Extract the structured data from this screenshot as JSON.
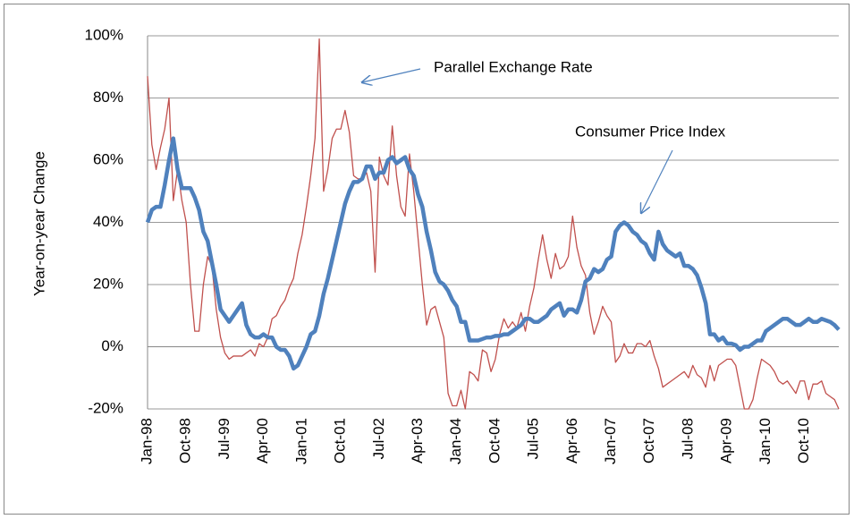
{
  "chart_data": {
    "type": "line",
    "ylabel": "Year-on-year Change",
    "annotations": [
      "Parallel Exchange Rate",
      "Consumer Price Index"
    ],
    "categories": [
      "Jan-98",
      null,
      null,
      null,
      null,
      null,
      null,
      null,
      null,
      "Oct-98",
      null,
      null,
      null,
      null,
      null,
      null,
      null,
      null,
      "Jul-99",
      null,
      null,
      null,
      null,
      null,
      null,
      null,
      null,
      "Apr-00",
      null,
      null,
      null,
      null,
      null,
      null,
      null,
      null,
      "Jan-01",
      null,
      null,
      null,
      null,
      null,
      null,
      null,
      null,
      "Oct-01",
      null,
      null,
      null,
      null,
      null,
      null,
      null,
      null,
      "Jul-02",
      null,
      null,
      null,
      null,
      null,
      null,
      null,
      null,
      "Apr-03",
      null,
      null,
      null,
      null,
      null,
      null,
      null,
      null,
      "Jan-04",
      null,
      null,
      null,
      null,
      null,
      null,
      null,
      null,
      "Oct-04",
      null,
      null,
      null,
      null,
      null,
      null,
      null,
      null,
      "Jul-05",
      null,
      null,
      null,
      null,
      null,
      null,
      null,
      null,
      "Apr-06",
      null,
      null,
      null,
      null,
      null,
      null,
      null,
      null,
      "Jan-07",
      null,
      null,
      null,
      null,
      null,
      null,
      null,
      null,
      "Oct-07",
      null,
      null,
      null,
      null,
      null,
      null,
      null,
      null,
      "Jul-08",
      null,
      null,
      null,
      null,
      null,
      null,
      null,
      null,
      "Apr-09",
      null,
      null,
      null,
      null,
      null,
      null,
      null,
      null,
      "Jan-10",
      null,
      null,
      null,
      null,
      null,
      null,
      null,
      null,
      "Oct-10",
      null,
      null,
      null,
      null,
      null,
      null,
      null,
      null
    ],
    "series": [
      {
        "name": "Parallel Exchange Rate",
        "color": "#c0504d",
        "width": 1.3,
        "values": [
          87,
          65,
          57,
          64,
          70,
          80,
          47,
          57,
          47,
          40,
          20,
          5,
          5,
          20,
          29,
          26,
          12,
          3,
          -2,
          -4,
          -3,
          -3,
          -3,
          -2,
          -1,
          -3,
          1,
          0,
          3,
          9,
          10,
          13,
          15,
          19,
          22,
          30,
          36,
          45,
          55,
          67,
          99,
          50,
          57,
          67,
          70,
          70,
          76,
          69,
          55,
          54,
          54,
          56,
          50,
          24,
          61,
          55,
          52,
          71,
          55,
          45,
          42,
          62,
          50,
          35,
          20,
          7,
          12,
          13,
          8,
          3,
          -15,
          -19,
          -19,
          -14,
          -20,
          -8,
          -9,
          -11,
          -1,
          -2,
          -8,
          -4,
          4,
          9,
          6,
          8,
          6,
          11,
          5,
          13,
          19,
          28,
          36,
          28,
          22,
          30,
          25,
          26,
          29,
          42,
          32,
          26,
          23,
          11,
          4,
          8,
          13,
          10,
          8,
          -5,
          -3,
          1,
          -2,
          -2,
          1,
          1,
          0,
          2,
          -3,
          -7,
          -13,
          -12,
          -11,
          -10,
          -9,
          -8,
          -10,
          -6,
          -9,
          -10,
          -13,
          -6,
          -11,
          -6,
          -5,
          -4,
          -4,
          -6,
          -13,
          -20,
          -20,
          -17,
          -10,
          -4,
          -5,
          -6,
          -8,
          -11,
          -12,
          -11,
          -13,
          -15,
          -11,
          -11,
          -17,
          -12,
          -12,
          -11,
          -15,
          -16,
          -17,
          -20
        ]
      },
      {
        "name": "Consumer Price Index",
        "color": "#4f81bd",
        "width": 4.5,
        "values": [
          40,
          44,
          45,
          45,
          52,
          60,
          67,
          57,
          51,
          51,
          51,
          48,
          44,
          37,
          34,
          27,
          20,
          12,
          10,
          8,
          10,
          12,
          14,
          7,
          4,
          3,
          3,
          4,
          3,
          3,
          0,
          -1,
          -1,
          -3,
          -7,
          -6,
          -3,
          0,
          4,
          5,
          10,
          17,
          22,
          28,
          34,
          40,
          46,
          50,
          53,
          53,
          54,
          58,
          58,
          54,
          56,
          56,
          60,
          61,
          59,
          60,
          61,
          57,
          55,
          49,
          45,
          37,
          31,
          24,
          21,
          20,
          18,
          15,
          13,
          8,
          8,
          2,
          2,
          2,
          2.5,
          3,
          3,
          3.5,
          3.5,
          4,
          4,
          5,
          6,
          7,
          9,
          9,
          8,
          8,
          9,
          10,
          12,
          13,
          14,
          10,
          12,
          12,
          11,
          15,
          21,
          22,
          25,
          24,
          25,
          28,
          29,
          37,
          39,
          40,
          39,
          37,
          36,
          34,
          33,
          30,
          28,
          37,
          33,
          31,
          30,
          29,
          30,
          26,
          26,
          25,
          23,
          19,
          14,
          4,
          4,
          2,
          3,
          1,
          1,
          0.5,
          -1,
          0,
          0,
          1,
          2,
          2,
          5,
          6,
          7,
          8,
          9,
          9,
          8,
          7,
          7,
          8,
          9,
          8,
          8,
          9,
          8.5,
          8,
          7,
          5.5
        ]
      }
    ],
    "ylim": [
      -20,
      100
    ],
    "yticks": [
      {
        "value": -20,
        "label": "-20%"
      },
      {
        "value": 0,
        "label": "0%"
      },
      {
        "value": 20,
        "label": "20%"
      },
      {
        "value": 40,
        "label": "40%"
      },
      {
        "value": 60,
        "label": "60%"
      },
      {
        "value": 80,
        "label": "80%"
      },
      {
        "value": 100,
        "label": "100%"
      }
    ],
    "grid": true
  }
}
